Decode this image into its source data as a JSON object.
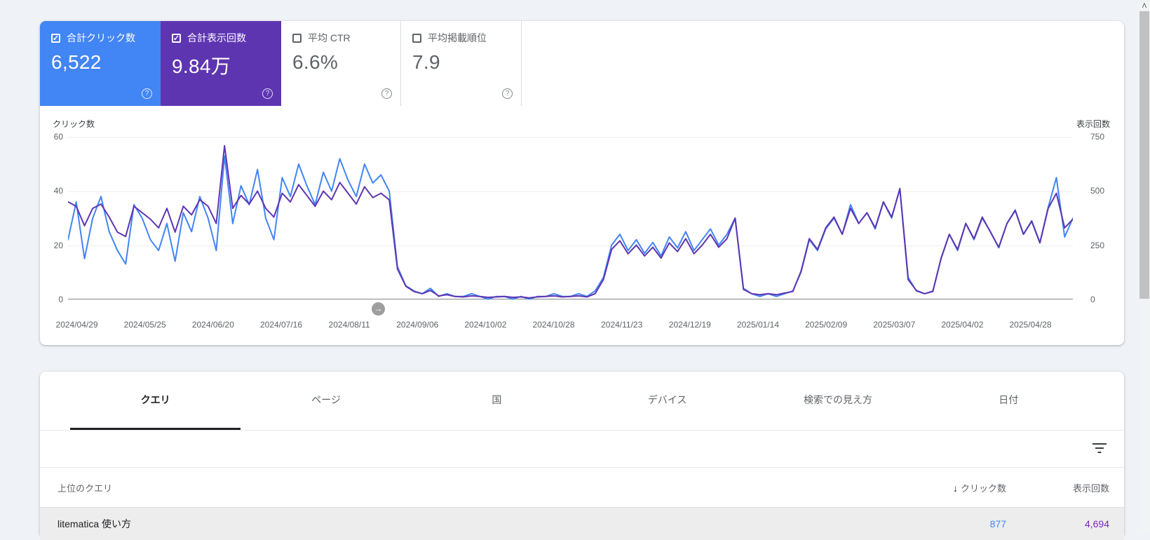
{
  "metrics": {
    "clicks": {
      "label": "合計クリック数",
      "value": "6,522",
      "color": "#4285f4",
      "checked": true
    },
    "impressions": {
      "label": "合計表示回数",
      "value": "9.84万",
      "color": "#5e35b1",
      "checked": true
    },
    "ctr": {
      "label": "平均 CTR",
      "value": "6.6%",
      "checked": false
    },
    "position": {
      "label": "平均掲載順位",
      "value": "7.9",
      "checked": false
    },
    "help_icon": "?"
  },
  "chart_data": {
    "type": "line",
    "left_axis": {
      "title": "クリック数",
      "ticks": [
        "60",
        "40",
        "20",
        "0"
      ],
      "ylim": [
        0,
        60
      ]
    },
    "right_axis": {
      "title": "表示回数",
      "ticks": [
        "750",
        "500",
        "250",
        "0"
      ],
      "ylim": [
        0,
        750
      ]
    },
    "x_labels": [
      "2024/04/29",
      "2024/05/25",
      "2024/06/20",
      "2024/07/16",
      "2024/08/11",
      "2024/09/06",
      "2024/10/02",
      "2024/10/28",
      "2024/11/23",
      "2024/12/19",
      "2025/01/14",
      "2025/02/09",
      "2025/03/07",
      "2025/04/02",
      "2025/04/28"
    ],
    "grid": true,
    "legend_position": "none",
    "series": [
      {
        "name": "クリック数",
        "color": "#4285f4",
        "axis": "left",
        "values": [
          22,
          36,
          15,
          30,
          38,
          25,
          18,
          13,
          35,
          30,
          22,
          18,
          28,
          14,
          32,
          25,
          38,
          30,
          18,
          53,
          28,
          42,
          35,
          48,
          30,
          22,
          45,
          38,
          50,
          42,
          35,
          47,
          40,
          52,
          44,
          38,
          50,
          43,
          46,
          40,
          12,
          5,
          3,
          2,
          4,
          1,
          2,
          1,
          1,
          2,
          1,
          0,
          1,
          1,
          0,
          1,
          0,
          1,
          1,
          2,
          1,
          1,
          2,
          1,
          3,
          8,
          20,
          24,
          18,
          22,
          17,
          21,
          16,
          23,
          19,
          25,
          18,
          22,
          26,
          20,
          24,
          30,
          4,
          2,
          1,
          2,
          1,
          2,
          3,
          10,
          22,
          18,
          26,
          30,
          24,
          35,
          28,
          32,
          26,
          36,
          30,
          41,
          8,
          3,
          2,
          3,
          15,
          24,
          18,
          28,
          22,
          30,
          25,
          19,
          28,
          33,
          24,
          29,
          21,
          34,
          45,
          23,
          30
        ]
      },
      {
        "name": "表示回数",
        "color": "#5e35b1",
        "axis": "right",
        "values": [
          450,
          430,
          340,
          420,
          440,
          380,
          310,
          290,
          430,
          400,
          370,
          330,
          420,
          310,
          430,
          390,
          460,
          430,
          350,
          710,
          420,
          480,
          440,
          500,
          420,
          380,
          490,
          450,
          530,
          480,
          430,
          500,
          460,
          540,
          490,
          440,
          520,
          470,
          490,
          460,
          140,
          60,
          35,
          25,
          40,
          15,
          20,
          12,
          10,
          15,
          12,
          8,
          10,
          12,
          8,
          10,
          6,
          10,
          12,
          15,
          10,
          12,
          15,
          10,
          25,
          90,
          230,
          270,
          210,
          250,
          200,
          240,
          190,
          260,
          220,
          280,
          210,
          250,
          300,
          240,
          280,
          375,
          45,
          25,
          20,
          25,
          20,
          28,
          35,
          130,
          280,
          230,
          330,
          380,
          300,
          420,
          350,
          400,
          330,
          450,
          380,
          510,
          90,
          40,
          25,
          35,
          190,
          300,
          230,
          350,
          280,
          380,
          310,
          240,
          350,
          410,
          300,
          360,
          260,
          420,
          490,
          330,
          370
        ]
      }
    ],
    "marker_arrow": "→"
  },
  "tabs": {
    "items": [
      {
        "label": "クエリ",
        "active": true
      },
      {
        "label": "ページ",
        "active": false
      },
      {
        "label": "国",
        "active": false
      },
      {
        "label": "デバイス",
        "active": false
      },
      {
        "label": "検索での見え方",
        "active": false
      },
      {
        "label": "日付",
        "active": false
      }
    ]
  },
  "table": {
    "query_header": "上位のクエリ",
    "sort_arrow": "↓",
    "clicks_header": "クリック数",
    "impressions_header": "表示回数",
    "rows": [
      {
        "query": "litematica 使い方",
        "clicks": "877",
        "impressions": "4,694"
      }
    ]
  },
  "scrollbar": {
    "up_arrow": "ᐱ"
  }
}
